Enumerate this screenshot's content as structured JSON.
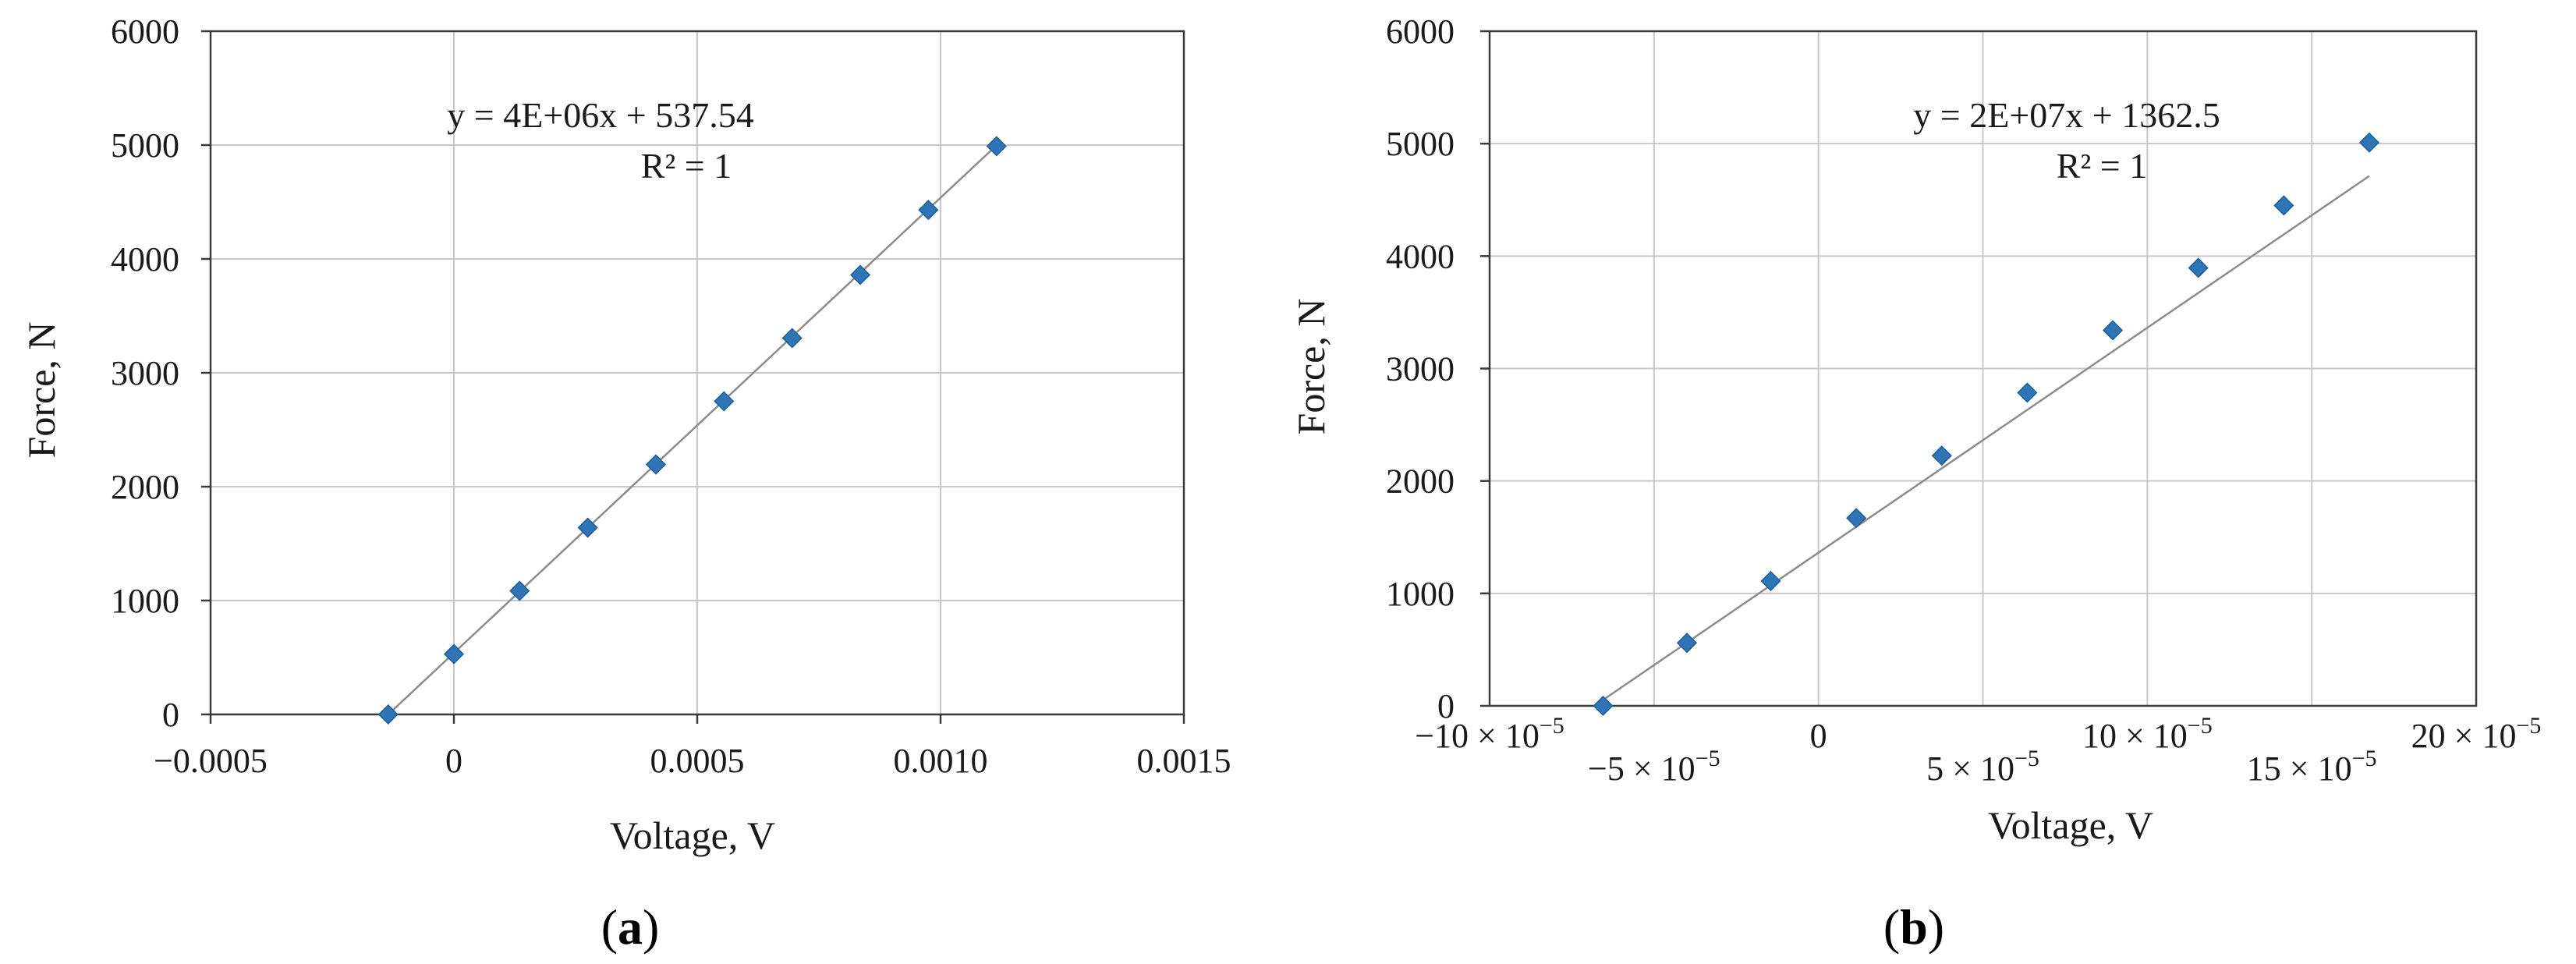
{
  "colors": {
    "marker": "#2e75b6",
    "trendline": "#8c8c8c",
    "grid": "#c8c8c8",
    "frame": "#3a3a3a",
    "text": "#1a1a1a"
  },
  "chart_data": [
    {
      "type": "scatter",
      "panel_label": "a",
      "xlabel": "Voltage, V",
      "ylabel": "Force, N",
      "xlim": [
        -0.0005,
        0.0015
      ],
      "ylim": [
        0,
        6000
      ],
      "x_ticks": [
        -0.0005,
        0,
        0.0005,
        0.001,
        0.0015
      ],
      "x_tick_labels": [
        "−0.0005",
        "0",
        "0.0005",
        "0.0010",
        "0.0015"
      ],
      "y_ticks": [
        0,
        1000,
        2000,
        3000,
        4000,
        5000,
        6000
      ],
      "y_tick_labels": [
        "0",
        "1000",
        "2000",
        "3000",
        "4000",
        "5000",
        "6000"
      ],
      "grid": true,
      "trendline": {
        "slope": 4000000,
        "intercept": 537.54,
        "equation": "y = 4E+06x + 537.54",
        "r2": "R² = 1"
      },
      "series": [
        {
          "x": [
            -0.000135,
            0.0,
            0.000135,
            0.000275,
            0.000415,
            0.000555,
            0.000695,
            0.000835,
            0.000975,
            0.001115
          ],
          "y": [
            0,
            530,
            1085,
            1640,
            2195,
            2750,
            3305,
            3860,
            4430,
            4990
          ]
        }
      ]
    },
    {
      "type": "scatter",
      "panel_label": "b",
      "xlabel": "Voltage, V",
      "ylabel": "Force, N",
      "xlim": [
        -0.0001,
        0.0002
      ],
      "ylim": [
        0,
        6000
      ],
      "x_ticks": [
        -0.0001,
        -5e-05,
        0,
        5e-05,
        0.0001,
        0.00015,
        0.0002
      ],
      "x_tick_labels": [
        "−10 × 10",
        "−5 × 10",
        "0",
        "5 × 10",
        "10 × 10",
        "15 × 10",
        "20 × 10"
      ],
      "x_tick_exponent": "−5",
      "y_ticks": [
        0,
        1000,
        2000,
        3000,
        4000,
        5000,
        6000
      ],
      "y_tick_labels": [
        "0",
        "1000",
        "2000",
        "3000",
        "4000",
        "5000",
        "6000"
      ],
      "grid": true,
      "trendline": {
        "slope": 20000000,
        "intercept": 1362.5,
        "equation": "y = 2E+07x + 1362.5",
        "r2": "R² = 1"
      },
      "series": [
        {
          "x": [
            -6.55e-05,
            -4e-05,
            -1.45e-05,
            1.15e-05,
            3.75e-05,
            6.35e-05,
            8.95e-05,
            0.0001155,
            0.0001415,
            0.0001675
          ],
          "y": [
            0,
            560,
            1110,
            1670,
            2225,
            2785,
            3340,
            3895,
            4450,
            5010
          ]
        }
      ]
    }
  ]
}
